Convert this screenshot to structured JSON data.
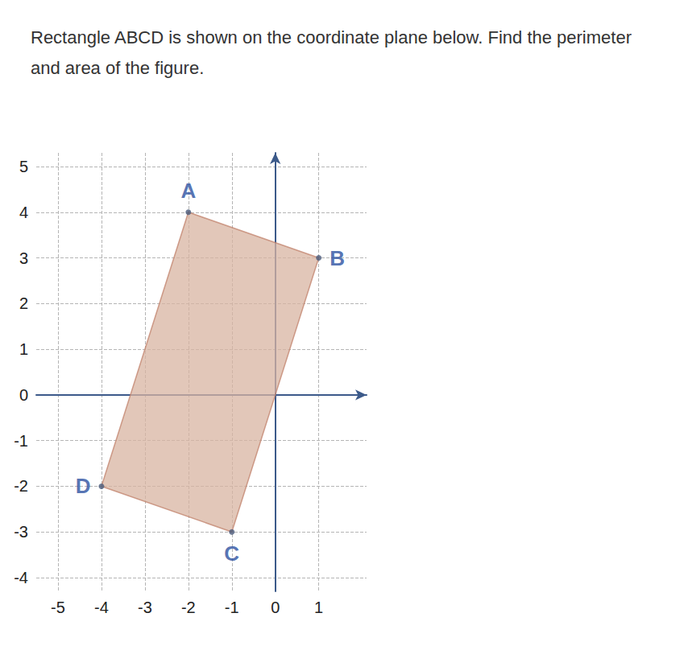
{
  "chart_data": {
    "type": "polygon",
    "title": "Rectangle ABCD is shown on the coordinate plane below. Find the perimeter and area of the figure.",
    "labels": [
      "A",
      "B",
      "C",
      "D"
    ],
    "x": [
      -2,
      1,
      -1,
      -4
    ],
    "values": [
      4,
      3,
      -3,
      -2
    ],
    "color": "#d8b4a2",
    "xlim": [
      -5.5,
      2.1
    ],
    "ylim": [
      -4.3,
      5.3
    ],
    "xticks": [
      -5,
      -4,
      -3,
      -2,
      -1,
      0,
      1
    ],
    "yticks": [
      -4,
      -3,
      -2,
      -1,
      0,
      1,
      2,
      3,
      4,
      5
    ],
    "grid": true
  }
}
